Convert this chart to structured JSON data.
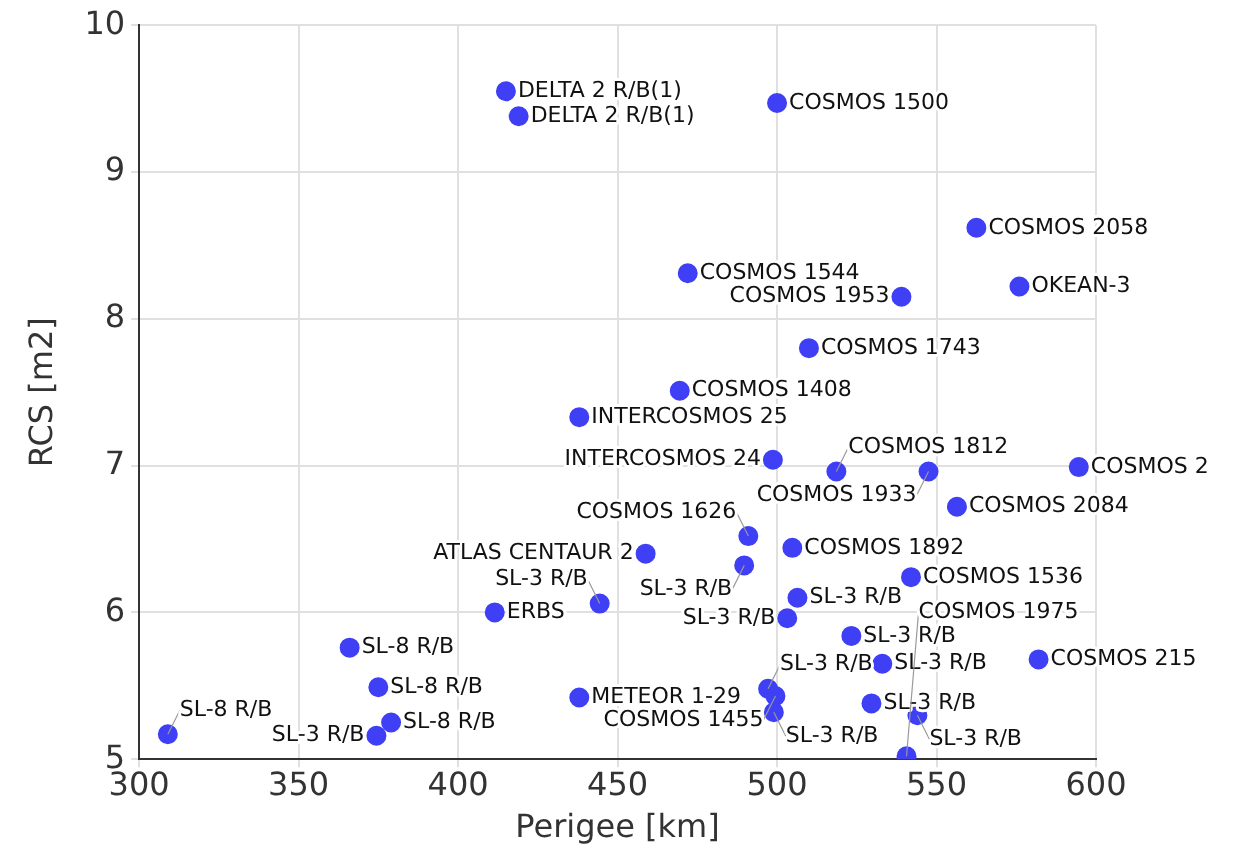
{
  "chart_data": {
    "type": "scatter",
    "xlabel": "Perigee [km]",
    "ylabel": "RCS [m2]",
    "xlim": [
      300,
      600
    ],
    "xticks": [
      300,
      350,
      400,
      450,
      500,
      550,
      600
    ],
    "ylim": [
      5,
      10
    ],
    "yticks": [
      5,
      6,
      7,
      8,
      9,
      10
    ],
    "grid": true,
    "marker": "circle",
    "series": [
      {
        "color": "#3f3ff5",
        "x": [
          415,
          419,
          500,
          562.5,
          472,
          539,
          576,
          510,
          469.5,
          438,
          498.7,
          518.6,
          547.5,
          594.6,
          556.4,
          491,
          458.8,
          504.8,
          489.7,
          542,
          444.4,
          411.5,
          506.4,
          503.2,
          523.3,
          533,
          582,
          438,
          497.2,
          499.5,
          499,
          529.6,
          544,
          540.6,
          366,
          375,
          379,
          374.4,
          309
        ],
        "values": [
          9.55,
          9.38,
          9.47,
          8.62,
          8.31,
          8.15,
          8.22,
          7.8,
          7.51,
          7.33,
          7.04,
          6.96,
          6.96,
          6.99,
          6.72,
          6.52,
          6.4,
          6.44,
          6.32,
          6.24,
          6.06,
          6.0,
          6.1,
          5.96,
          5.84,
          5.65,
          5.68,
          5.42,
          5.48,
          5.43,
          5.32,
          5.38,
          5.3,
          5.02,
          5.76,
          5.49,
          5.25,
          5.16,
          5.17
        ],
        "value_labels": [
          "DELTA 2 R/B(1)",
          "DELTA 2 R/B(1)",
          "COSMOS 1500",
          "COSMOS 2058",
          "COSMOS 1544",
          "COSMOS 1953",
          "OKEAN-3",
          "COSMOS 1743",
          "COSMOS 1408",
          "INTERCOSMOS 25",
          "INTERCOSMOS 24",
          "COSMOS 1812",
          "COSMOS 1933",
          "COSMOS 2",
          "COSMOS 2084",
          "COSMOS 1626",
          "ATLAS CENTAUR 2",
          "COSMOS 1892",
          "SL-3 R/B",
          "COSMOS 1536",
          "SL-3 R/B",
          "ERBS",
          "SL-3 R/B",
          "SL-3 R/B",
          "SL-3 R/B",
          "SL-3 R/B",
          "COSMOS 215",
          "METEOR 1-29",
          "SL-3 R/B",
          "COSMOS 1455",
          "SL-3 R/B",
          "SL-3 R/B",
          "SL-3 R/B",
          "COSMOS 1975",
          "SL-8 R/B",
          "SL-8 R/B",
          "SL-8 R/B",
          "SL-3 R/B",
          "SL-8 R/B"
        ]
      }
    ]
  }
}
